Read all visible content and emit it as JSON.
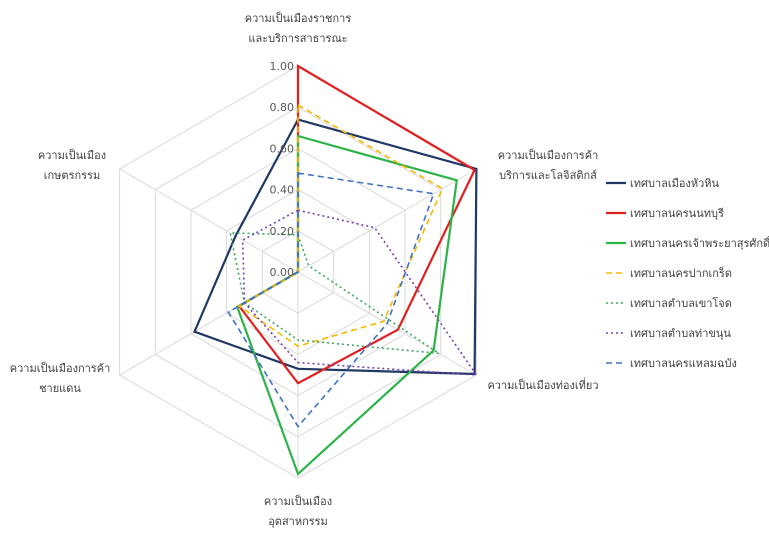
{
  "chart_data": {
    "type": "radar",
    "axes": [
      [
        "ความเป็นเมืองราชการ",
        "และบริการสาธารณะ"
      ],
      [
        "ความเป็นเมืองการค้า",
        "บริการและโลจิสติกส์"
      ],
      [
        "ความเป็นเมืองท่องเที่ยว"
      ],
      [
        "ความเป็นเมือง",
        "อุตสาหกรรม"
      ],
      [
        "ความเป็นเมืองการค้า",
        "ชายแดน"
      ],
      [
        "ความเป็นเมือง",
        "เกษตรกรรม"
      ]
    ],
    "rlim": [
      0,
      1
    ],
    "ticks": [
      "0.00",
      "0.20",
      "0.40",
      "0.60",
      "0.80",
      "1.00"
    ],
    "grid": true,
    "legend_position": "right",
    "series": [
      {
        "name": "เทศบาลเมืองหัวหิน",
        "color": "#1f3864",
        "dash": "solid",
        "values": [
          0.74,
          1.0,
          0.99,
          0.47,
          0.58,
          0.35
        ]
      },
      {
        "name": "เทศบาลนครนนทบุรี",
        "color": "#e02020",
        "dash": "solid",
        "values": [
          1.0,
          0.99,
          0.56,
          0.54,
          0.33,
          0.0
        ]
      },
      {
        "name": "เทศบาลนครเจ้าพระยาสุรศักดิ์",
        "color": "#2db34a",
        "dash": "solid",
        "values": [
          0.66,
          0.89,
          0.76,
          0.98,
          0.34,
          0.0
        ]
      },
      {
        "name": "เทศบาลนครปากเกร็ด",
        "color": "#f5b800",
        "dash": "dashed",
        "values": [
          0.81,
          0.81,
          0.48,
          0.36,
          0.33,
          0.0
        ]
      },
      {
        "name": "เทศบาลตำบลเขาโจด",
        "color": "#3aaa5a",
        "dash": "dotted",
        "values": [
          0.18,
          0.06,
          0.79,
          0.33,
          0.3,
          0.38
        ]
      },
      {
        "name": "เทศบาลตำบลท่าขนุน",
        "color": "#7a3fb5",
        "dash": "dotted",
        "values": [
          0.3,
          0.43,
          1.0,
          0.44,
          0.3,
          0.31
        ]
      },
      {
        "name": "เทศบาลนครแหลมฉบัง",
        "color": "#3f72c4",
        "dash": "dashed",
        "values": [
          0.48,
          0.76,
          0.5,
          0.75,
          0.39,
          0.0
        ]
      }
    ]
  }
}
